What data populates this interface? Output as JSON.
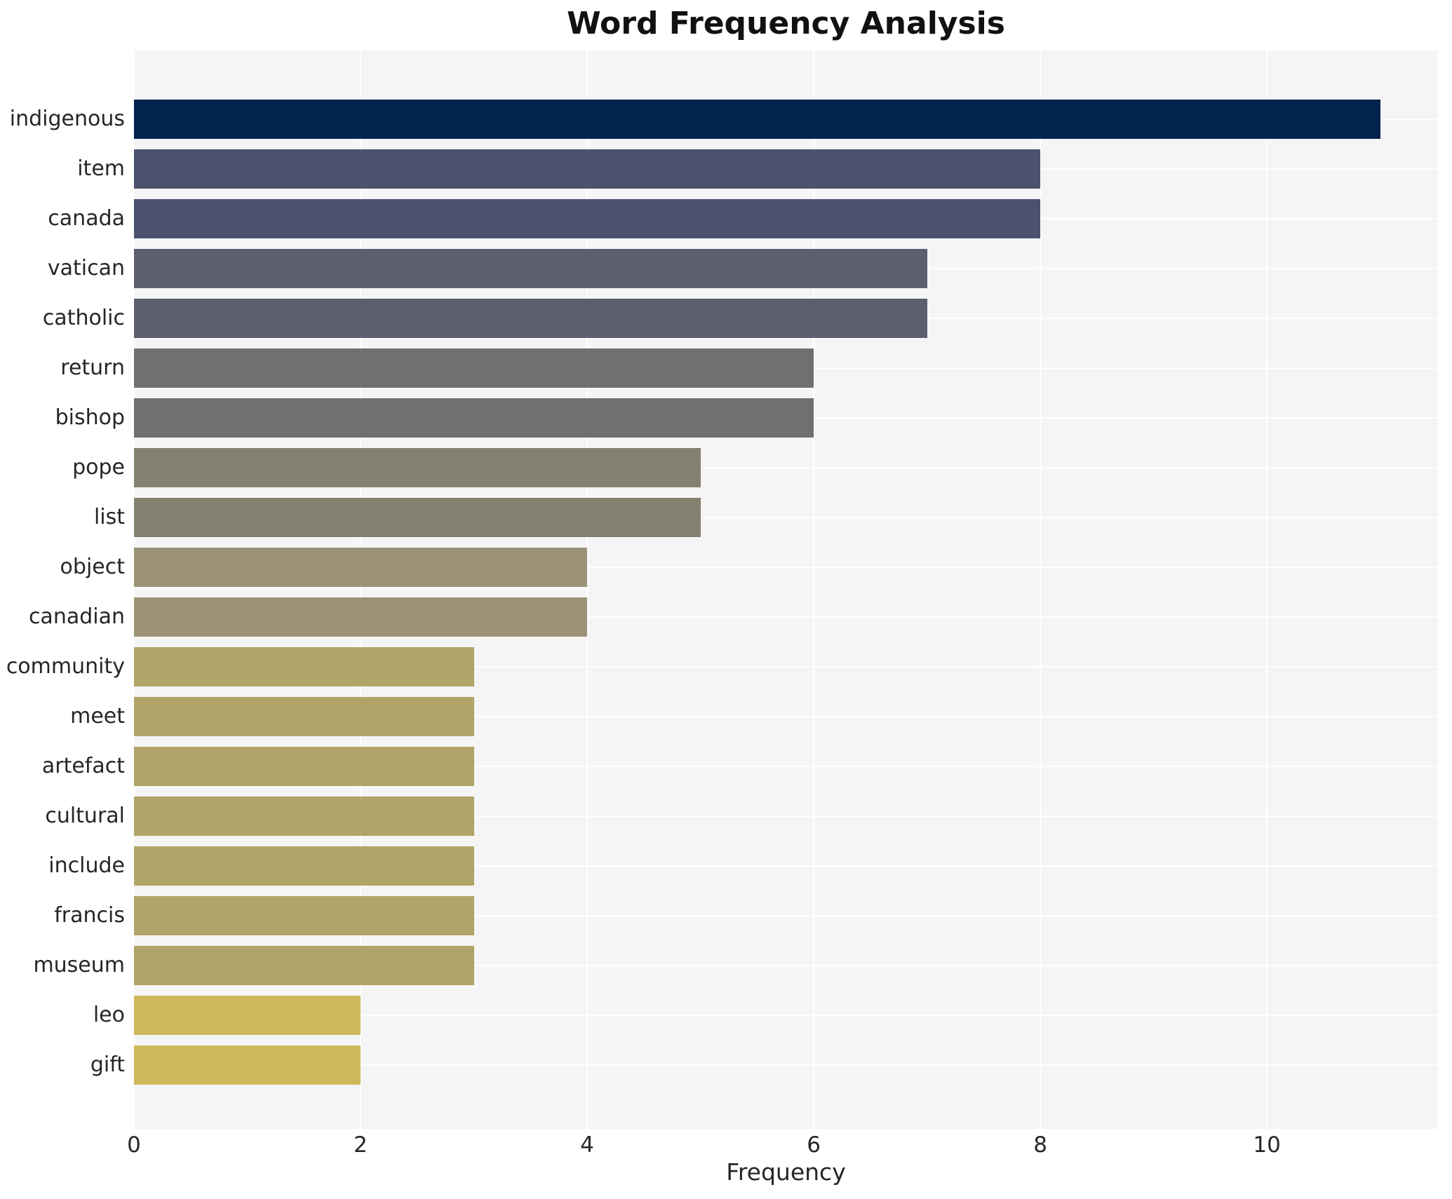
{
  "chart_data": {
    "type": "bar",
    "orientation": "horizontal",
    "title": "Word Frequency Analysis",
    "xlabel": "Frequency",
    "ylabel": "",
    "xlim": [
      0,
      11.51
    ],
    "xticks": [
      0,
      2,
      4,
      6,
      8,
      10
    ],
    "grid": true,
    "legend": false,
    "categories": [
      "indigenous",
      "item",
      "canada",
      "vatican",
      "catholic",
      "return",
      "bishop",
      "pope",
      "list",
      "object",
      "canadian",
      "community",
      "meet",
      "artefact",
      "cultural",
      "include",
      "francis",
      "museum",
      "leo",
      "gift"
    ],
    "values": [
      11,
      8,
      8,
      7,
      7,
      6,
      6,
      5,
      5,
      4,
      4,
      3,
      3,
      3,
      3,
      3,
      3,
      3,
      2,
      2
    ],
    "bar_colors": [
      "#01234d",
      "#4a526e",
      "#4a526e",
      "#5b5f6e",
      "#5b5f6e",
      "#6f7072",
      "#6f7072",
      "#848170",
      "#848170",
      "#9c9377",
      "#9c9377",
      "#b0a468",
      "#b0a468",
      "#b0a468",
      "#b0a468",
      "#b0a468",
      "#b0a468",
      "#b0a468",
      "#cdb95b",
      "#cdb95b"
    ]
  },
  "style": {
    "figure_background": "#ffffff",
    "axes_background": "#f5f5f5",
    "grid_color": "#ffffff",
    "title_color": "#111111",
    "tick_color": "#262626"
  }
}
